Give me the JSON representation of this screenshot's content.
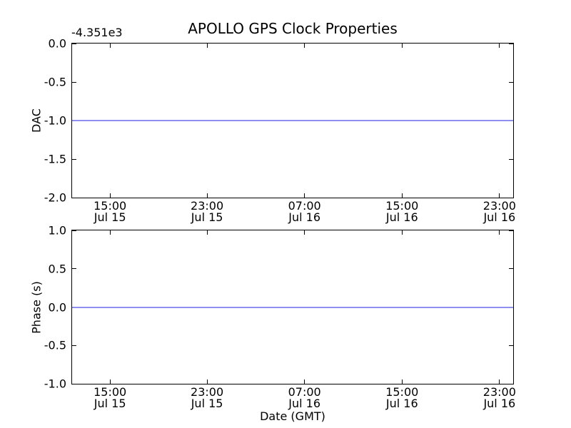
{
  "figure": {
    "title": "APOLLO GPS Clock Properties",
    "xlabel": "Date (GMT)",
    "background_color": "#ffffff",
    "axis_color": "#000000",
    "line_color": "#8f8ff0",
    "grid": false,
    "legend": null
  },
  "chart_data": [
    {
      "type": "line",
      "subplot": "top",
      "title": "APOLLO GPS Clock Properties",
      "ylabel": "DAC",
      "y_axis_offset_text": "-4.351e3",
      "ylim": [
        -2.0,
        0.0
      ],
      "ytick_labels": [
        "0.0",
        "-0.5",
        "-1.0",
        "-1.5",
        "-2.0"
      ],
      "ytick_values": [
        0.0,
        -0.5,
        -1.0,
        -1.5,
        -2.0
      ],
      "xticks": [
        {
          "time": "15:00",
          "date": "Jul 15",
          "frac": 0.086
        },
        {
          "time": "23:00",
          "date": "Jul 15",
          "frac": 0.306
        },
        {
          "time": "07:00",
          "date": "Jul 16",
          "frac": 0.527
        },
        {
          "time": "15:00",
          "date": "Jul 16",
          "frac": 0.748
        },
        {
          "time": "23:00",
          "date": "Jul 16",
          "frac": 0.969
        }
      ],
      "series": [
        {
          "name": "DAC",
          "shape": "constant-horizontal-line",
          "y": -1.0,
          "note": "flat line at -1.0 on axis with offset -4.351e3"
        }
      ]
    },
    {
      "type": "line",
      "subplot": "bottom",
      "ylabel": "Phase (s)",
      "xlabel": "Date (GMT)",
      "ylim": [
        -1.0,
        1.0
      ],
      "ytick_labels": [
        "1.0",
        "0.5",
        "0.0",
        "-0.5",
        "-1.0"
      ],
      "ytick_values": [
        1.0,
        0.5,
        0.0,
        -0.5,
        -1.0
      ],
      "xticks": [
        {
          "time": "15:00",
          "date": "Jul 15",
          "frac": 0.086
        },
        {
          "time": "23:00",
          "date": "Jul 15",
          "frac": 0.306
        },
        {
          "time": "07:00",
          "date": "Jul 16",
          "frac": 0.527
        },
        {
          "time": "15:00",
          "date": "Jul 16",
          "frac": 0.748
        },
        {
          "time": "23:00",
          "date": "Jul 16",
          "frac": 0.969
        }
      ],
      "series": [
        {
          "name": "Phase (s)",
          "shape": "constant-horizontal-line",
          "y": 0.0,
          "note": "flat line at 0.0"
        }
      ]
    }
  ]
}
